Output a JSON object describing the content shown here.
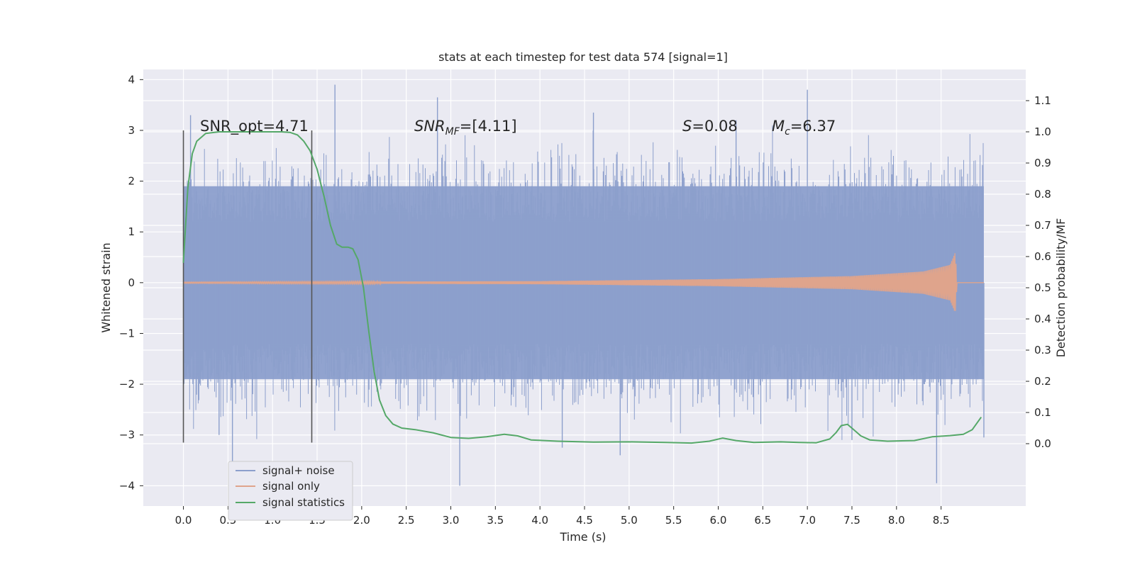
{
  "chart_data": {
    "type": "line",
    "title": "stats at each timestep for test data 574 [signal=1]",
    "xlabel": "Time (s)",
    "ylabel_left": "Whitened strain",
    "ylabel_right": "Detection probability/MF",
    "x_range": [
      -0.45,
      9.45
    ],
    "y_left_range": [
      -4.4,
      4.2
    ],
    "y_right_range": [
      -0.2,
      1.2
    ],
    "x_ticks": [
      "0.0",
      "0.5",
      "1.0",
      "1.5",
      "2.0",
      "2.5",
      "3.0",
      "3.5",
      "4.0",
      "4.5",
      "5.0",
      "5.5",
      "6.0",
      "6.5",
      "7.0",
      "7.5",
      "8.0",
      "8.5"
    ],
    "y_left_ticks": [
      "4",
      "3",
      "2",
      "1",
      "0",
      "−1",
      "−2",
      "−3",
      "−4"
    ],
    "y_right_ticks": [
      "1.1",
      "1.0",
      "0.9",
      "0.8",
      "0.7",
      "0.6",
      "0.5",
      "0.4",
      "0.3",
      "0.2",
      "0.1",
      "0.0"
    ],
    "grid": true,
    "legend_position": "lower-left",
    "annotations": {
      "snr_opt": "SNR_opt=4.71",
      "snr_mf_main": "SNR",
      "snr_mf_sub": "MF",
      "snr_mf_value": "=[4.11]",
      "s_symbol": "S",
      "s_value": "=0.08",
      "mc_main": "M",
      "mc_sub": "c",
      "mc_value": "=6.37"
    },
    "window_markers_x": [
      0.0,
      1.44
    ],
    "series": [
      {
        "name": "signal+ noise",
        "color": "#8c9fcc",
        "axis": "left",
        "x_start": 0.0,
        "x_end": 8.98,
        "noise_band": [
          -1.9,
          1.9
        ],
        "spikes": [
          {
            "x": 0.08,
            "y": 3.3
          },
          {
            "x": 0.55,
            "y": -3.7
          },
          {
            "x": 0.4,
            "y": -3.0
          },
          {
            "x": 1.7,
            "y": 3.9
          },
          {
            "x": 2.85,
            "y": 3.65
          },
          {
            "x": 3.1,
            "y": -4.0
          },
          {
            "x": 4.25,
            "y": -3.25
          },
          {
            "x": 4.6,
            "y": 3.35
          },
          {
            "x": 4.9,
            "y": -3.4
          },
          {
            "x": 7.0,
            "y": 3.8
          },
          {
            "x": 7.5,
            "y": -3.1
          },
          {
            "x": 8.45,
            "y": -3.95
          },
          {
            "x": 8.98,
            "y": -3.05
          },
          {
            "x": 6.2,
            "y": 3.2
          }
        ]
      },
      {
        "name": "signal only",
        "color": "#dfa48c",
        "axis": "left",
        "x_start": 0.0,
        "x_end": 8.68,
        "amplitude_envelope": [
          [
            0.0,
            0.01
          ],
          [
            4.0,
            0.03
          ],
          [
            6.0,
            0.07
          ],
          [
            7.5,
            0.13
          ],
          [
            8.3,
            0.22
          ],
          [
            8.6,
            0.35
          ],
          [
            8.66,
            0.6
          ],
          [
            8.68,
            0.0
          ]
        ]
      },
      {
        "name": "signal statistics",
        "color": "#55a868",
        "axis": "right",
        "points": [
          [
            0.0,
            0.58
          ],
          [
            0.05,
            0.82
          ],
          [
            0.1,
            0.93
          ],
          [
            0.15,
            0.97
          ],
          [
            0.25,
            0.995
          ],
          [
            0.4,
            1.0
          ],
          [
            0.8,
            1.0
          ],
          [
            1.1,
            1.0
          ],
          [
            1.2,
            0.998
          ],
          [
            1.28,
            0.99
          ],
          [
            1.35,
            0.97
          ],
          [
            1.42,
            0.94
          ],
          [
            1.5,
            0.88
          ],
          [
            1.58,
            0.79
          ],
          [
            1.65,
            0.7
          ],
          [
            1.72,
            0.64
          ],
          [
            1.78,
            0.63
          ],
          [
            1.85,
            0.63
          ],
          [
            1.9,
            0.625
          ],
          [
            1.96,
            0.59
          ],
          [
            2.02,
            0.5
          ],
          [
            2.08,
            0.36
          ],
          [
            2.14,
            0.23
          ],
          [
            2.2,
            0.14
          ],
          [
            2.27,
            0.09
          ],
          [
            2.35,
            0.063
          ],
          [
            2.45,
            0.05
          ],
          [
            2.6,
            0.045
          ],
          [
            2.8,
            0.035
          ],
          [
            3.0,
            0.02
          ],
          [
            3.2,
            0.017
          ],
          [
            3.4,
            0.022
          ],
          [
            3.6,
            0.03
          ],
          [
            3.75,
            0.025
          ],
          [
            3.9,
            0.012
          ],
          [
            4.2,
            0.008
          ],
          [
            4.6,
            0.005
          ],
          [
            5.0,
            0.006
          ],
          [
            5.4,
            0.004
          ],
          [
            5.7,
            0.002
          ],
          [
            5.9,
            0.008
          ],
          [
            6.05,
            0.018
          ],
          [
            6.2,
            0.01
          ],
          [
            6.4,
            0.004
          ],
          [
            6.7,
            0.006
          ],
          [
            6.9,
            0.004
          ],
          [
            7.1,
            0.003
          ],
          [
            7.25,
            0.015
          ],
          [
            7.32,
            0.035
          ],
          [
            7.38,
            0.058
          ],
          [
            7.45,
            0.062
          ],
          [
            7.52,
            0.045
          ],
          [
            7.6,
            0.025
          ],
          [
            7.7,
            0.012
          ],
          [
            7.9,
            0.008
          ],
          [
            8.2,
            0.01
          ],
          [
            8.4,
            0.022
          ],
          [
            8.6,
            0.026
          ],
          [
            8.75,
            0.03
          ],
          [
            8.85,
            0.045
          ],
          [
            8.95,
            0.085
          ]
        ]
      }
    ]
  }
}
